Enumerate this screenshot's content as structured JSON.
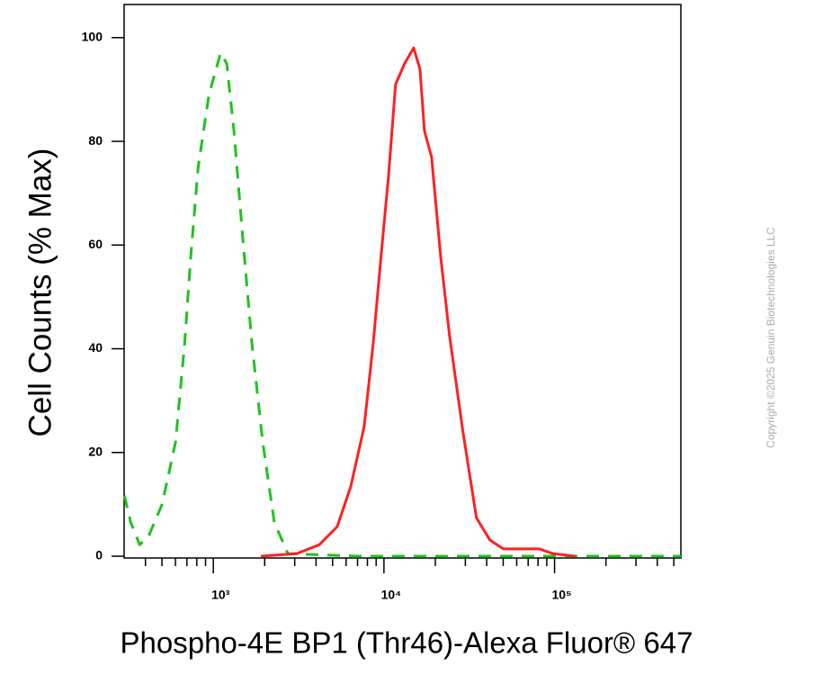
{
  "chart_data": {
    "type": "line",
    "xlabel": "Phospho-4E BP1 (Thr46)-Alexa Fluor® 647",
    "ylabel": "Cell Counts (% Max)",
    "watermark": "Copyright ©2025 Genuin Biotechnologies LLC",
    "xscale": "log",
    "xlim": [
      300,
      550000
    ],
    "ylim": [
      0,
      105
    ],
    "xticks": [
      {
        "value": 1000,
        "label": "10³"
      },
      {
        "value": 10000,
        "label": "10⁴"
      },
      {
        "value": 100000,
        "label": "10⁵"
      }
    ],
    "xminorticks": [
      400,
      500,
      600,
      700,
      800,
      900,
      2000,
      3000,
      4000,
      5000,
      6000,
      7000,
      8000,
      9000,
      20000,
      30000,
      40000,
      50000,
      60000,
      70000,
      80000,
      90000,
      200000,
      300000,
      400000,
      500000
    ],
    "yticks": [
      0,
      20,
      40,
      60,
      80,
      100
    ],
    "series": [
      {
        "color": "#22c022",
        "line_style": "dashed",
        "x": [
          301,
          328,
          370,
          418,
          501,
          601,
          679,
          738,
          815,
          942,
          1102,
          1199,
          1321,
          1492,
          1684,
          1947,
          2279,
          2735,
          7211,
          550000
        ],
        "values": [
          11.7,
          6.5,
          2.2,
          3.9,
          10,
          22,
          41,
          58,
          75,
          89,
          97,
          95,
          82,
          61,
          41,
          22,
          6.5,
          0.5,
          0,
          0
        ]
      },
      {
        "color": "#ff2020",
        "line_style": "solid",
        "x": [
          1901,
          3084,
          4178,
          5321,
          6383,
          7656,
          8648,
          9753,
          10617,
          11698,
          13213,
          14925,
          16251,
          17265,
          19016,
          21468,
          24225,
          29051,
          34834,
          41783,
          50119,
          81470,
          97500,
          132130
        ],
        "values": [
          0,
          0.5,
          2.2,
          5.7,
          13.4,
          25,
          41,
          60,
          73,
          91,
          95,
          98,
          94,
          82,
          77,
          58,
          42.5,
          24,
          7.4,
          3.1,
          1.4,
          1.4,
          0.5,
          0
        ]
      }
    ]
  }
}
